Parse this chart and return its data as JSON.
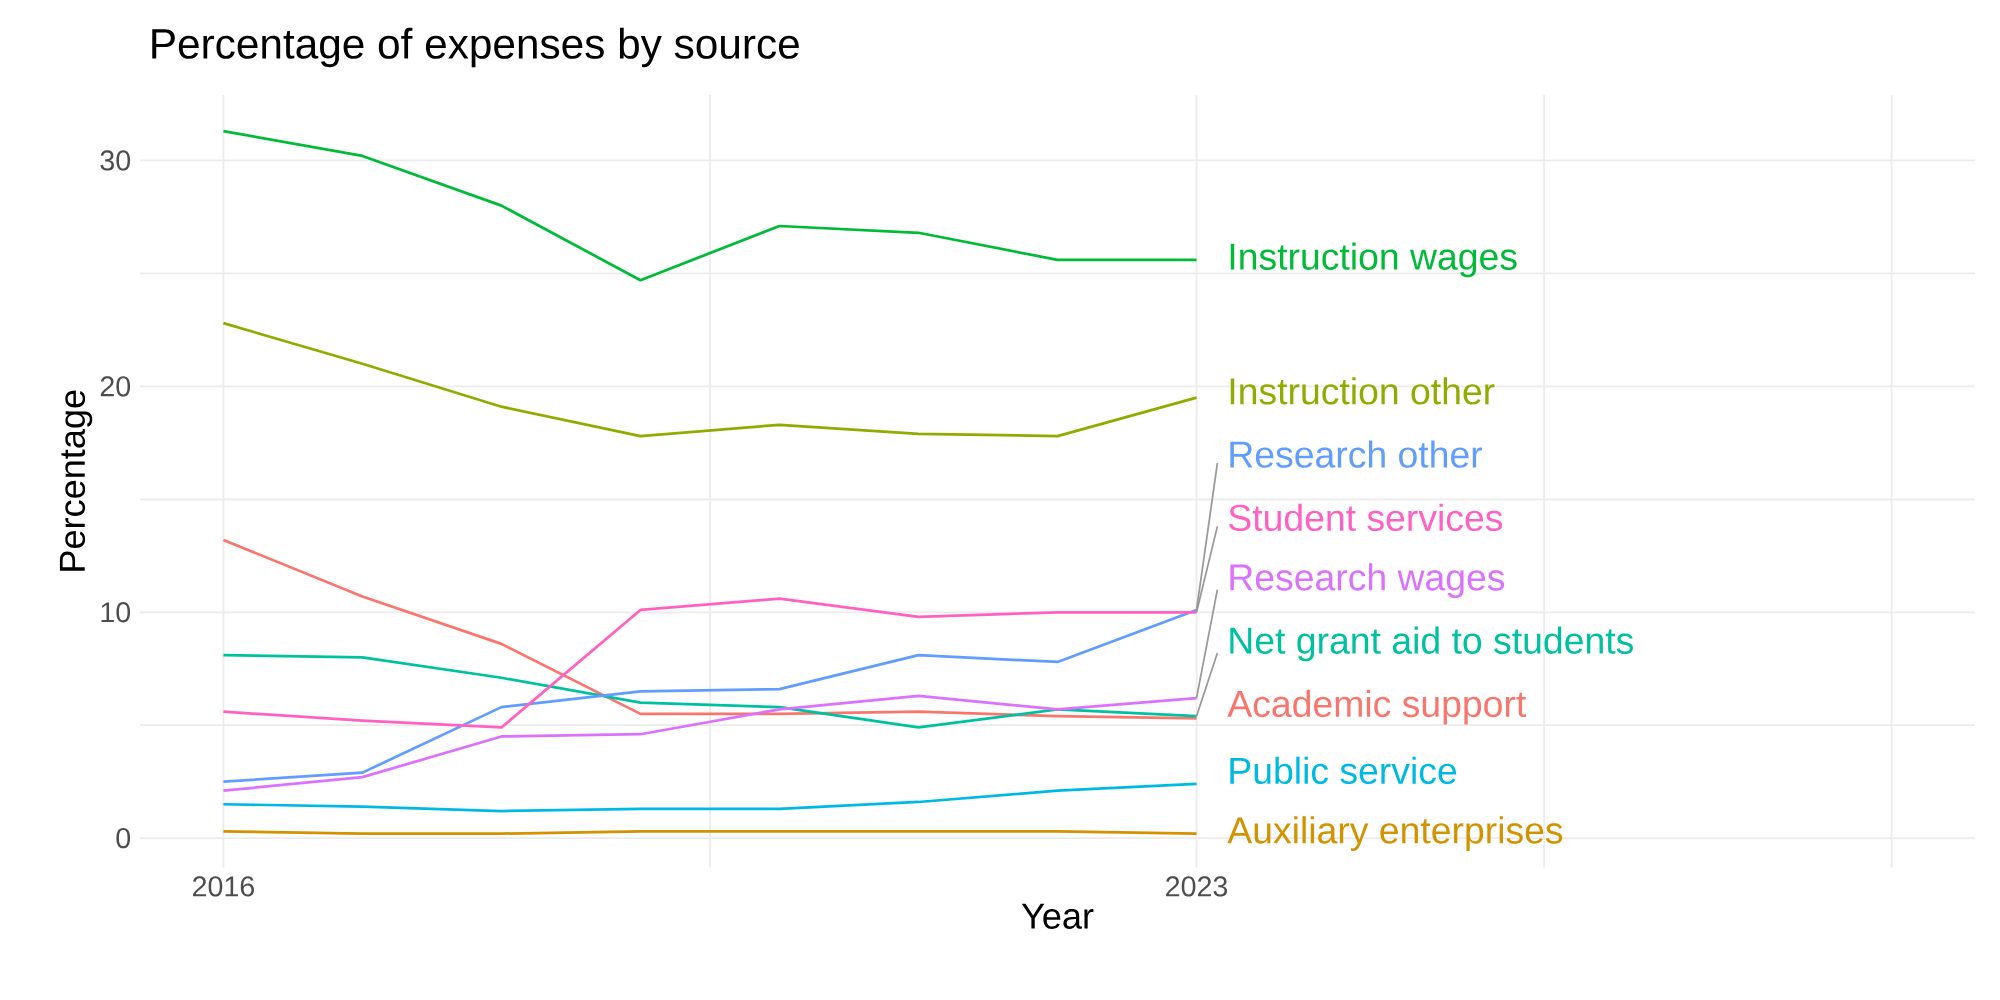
{
  "chart_data": {
    "type": "line",
    "title": "Percentage of expenses by source",
    "xlabel": "Year",
    "ylabel": "Percentage",
    "x": [
      2016,
      2017,
      2018,
      2019,
      2020,
      2021,
      2022,
      2023
    ],
    "xlim": [
      2015.4,
      2028.6
    ],
    "ylim": [
      -1.3,
      32.9
    ],
    "xticks": [
      2016,
      {
        "value": 2019.5,
        "label": null
      },
      2023,
      {
        "value": 2025.5,
        "label": null
      },
      {
        "value": 2028,
        "label": null
      }
    ],
    "yticks": [
      0,
      {
        "value": 5,
        "label": null
      },
      10,
      {
        "value": 15,
        "label": null
      },
      20,
      {
        "value": 25,
        "label": null
      },
      30
    ],
    "grid": true,
    "series": [
      {
        "name": "Academic support",
        "color": "#F8766D",
        "values": [
          13.2,
          10.7,
          8.6,
          5.5,
          5.5,
          5.6,
          5.4,
          5.3
        ]
      },
      {
        "name": "Auxiliary enterprises",
        "color": "#D39200",
        "values": [
          0.3,
          0.2,
          0.2,
          0.3,
          0.3,
          0.3,
          0.3,
          0.2
        ]
      },
      {
        "name": "Instruction other",
        "color": "#93AA00",
        "values": [
          22.8,
          21.0,
          19.1,
          17.8,
          18.3,
          17.9,
          17.8,
          19.5
        ]
      },
      {
        "name": "Instruction wages",
        "color": "#00BA38",
        "values": [
          31.3,
          30.2,
          28.0,
          24.7,
          27.1,
          26.8,
          25.6,
          25.6
        ]
      },
      {
        "name": "Net grant aid to students",
        "color": "#00C19F",
        "values": [
          8.1,
          8.0,
          7.1,
          6.0,
          5.8,
          4.9,
          5.7,
          5.4
        ]
      },
      {
        "name": "Public service",
        "color": "#00B9E3",
        "values": [
          1.5,
          1.4,
          1.2,
          1.3,
          1.3,
          1.6,
          2.1,
          2.4
        ]
      },
      {
        "name": "Research other",
        "color": "#619CFF",
        "values": [
          2.5,
          2.9,
          5.8,
          6.5,
          6.6,
          8.1,
          7.8,
          10.1
        ]
      },
      {
        "name": "Research wages",
        "color": "#DB72FB",
        "values": [
          2.1,
          2.7,
          4.5,
          4.6,
          5.7,
          6.3,
          5.7,
          6.2
        ]
      },
      {
        "name": "Student services",
        "color": "#FF61C3",
        "values": [
          5.6,
          5.2,
          4.9,
          10.1,
          10.6,
          9.8,
          10.0,
          10.0
        ]
      }
    ]
  }
}
